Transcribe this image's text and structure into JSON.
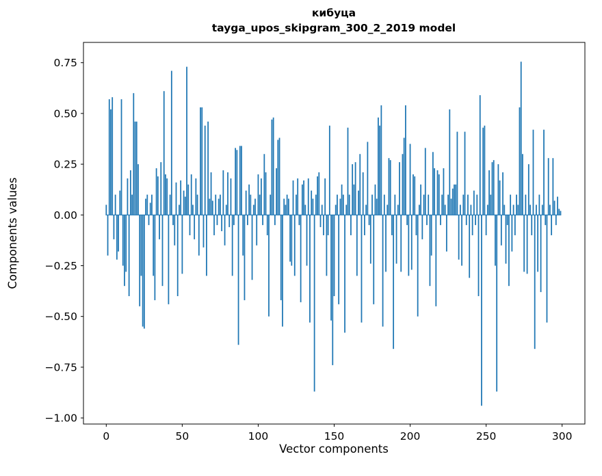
{
  "chart_data": {
    "type": "bar",
    "title": "кибуца",
    "subtitle": "tayga_upos_skipgram_300_2_2019 model",
    "xlabel": "Vector components",
    "ylabel": "Components values",
    "xlim": [
      -15,
      315
    ],
    "ylim": [
      -1.03,
      0.85
    ],
    "xticks": [
      0,
      50,
      100,
      150,
      200,
      250,
      300
    ],
    "yticks": [
      -1.0,
      -0.75,
      -0.5,
      -0.25,
      0.0,
      0.25,
      0.5,
      0.75
    ],
    "bar_color": "#1f77b4",
    "n_components": 300,
    "values": [
      0.05,
      -0.2,
      0.57,
      0.52,
      0.58,
      -0.12,
      0.1,
      -0.22,
      -0.18,
      0.12,
      0.57,
      -0.25,
      -0.35,
      -0.28,
      0.18,
      -0.4,
      0.22,
      0.1,
      0.6,
      0.46,
      0.46,
      0.25,
      -0.45,
      -0.3,
      -0.55,
      -0.56,
      0.08,
      0.1,
      -0.05,
      0.06,
      0.1,
      -0.3,
      -0.42,
      0.23,
      0.19,
      -0.12,
      0.26,
      -0.35,
      0.61,
      0.2,
      0.18,
      -0.44,
      0.1,
      0.71,
      -0.05,
      -0.15,
      0.16,
      -0.4,
      0.05,
      0.17,
      -0.29,
      0.12,
      0.09,
      0.73,
      0.15,
      -0.1,
      0.2,
      0.05,
      -0.12,
      0.18,
      0.1,
      -0.2,
      0.53,
      0.53,
      -0.16,
      0.44,
      -0.3,
      0.46,
      0.08,
      0.21,
      0.07,
      -0.1,
      0.1,
      -0.05,
      0.08,
      0.1,
      -0.08,
      0.22,
      -0.15,
      0.05,
      0.21,
      -0.06,
      0.18,
      -0.3,
      -0.05,
      0.33,
      0.32,
      -0.64,
      0.34,
      0.34,
      -0.2,
      -0.42,
      0.12,
      -0.05,
      0.15,
      0.1,
      -0.32,
      0.05,
      0.08,
      -0.15,
      0.2,
      0.1,
      0.18,
      -0.05,
      0.3,
      0.21,
      -0.1,
      -0.5,
      0.1,
      0.47,
      0.48,
      -0.05,
      0.23,
      0.37,
      0.38,
      -0.42,
      -0.55,
      0.08,
      0.05,
      0.1,
      0.08,
      -0.23,
      -0.25,
      0.17,
      -0.3,
      0.1,
      0.18,
      -0.05,
      -0.43,
      0.15,
      0.17,
      0.05,
      -0.25,
      0.18,
      -0.53,
      0.12,
      0.08,
      -0.87,
      0.1,
      0.19,
      0.21,
      -0.06,
      0.05,
      -0.1,
      0.18,
      -0.3,
      -0.1,
      0.44,
      -0.52,
      -0.74,
      -0.4,
      0.05,
      0.1,
      -0.44,
      0.08,
      0.15,
      0.1,
      -0.58,
      0.05,
      0.43,
      0.1,
      -0.1,
      0.25,
      0.15,
      0.26,
      -0.3,
      0.12,
      0.3,
      -0.53,
      0.21,
      -0.1,
      0.05,
      0.36,
      -0.05,
      -0.24,
      0.1,
      -0.44,
      0.15,
      0.08,
      0.48,
      0.44,
      0.54,
      -0.55,
      0.1,
      -0.28,
      0.05,
      0.28,
      0.27,
      -0.1,
      -0.66,
      0.1,
      -0.24,
      0.05,
      0.26,
      -0.28,
      0.3,
      0.38,
      0.54,
      -0.05,
      -0.3,
      0.35,
      -0.27,
      0.2,
      0.19,
      -0.1,
      -0.5,
      0.05,
      0.15,
      -0.12,
      0.1,
      0.33,
      -0.05,
      0.1,
      -0.35,
      -0.2,
      0.31,
      0.23,
      -0.45,
      0.22,
      0.2,
      -0.05,
      0.1,
      0.23,
      0.05,
      -0.18,
      0.1,
      0.52,
      0.08,
      0.13,
      0.15,
      0.15,
      0.41,
      -0.22,
      0.05,
      -0.25,
      0.1,
      0.41,
      -0.05,
      0.1,
      -0.31,
      0.05,
      -0.1,
      0.12,
      -0.05,
      0.1,
      -0.4,
      0.59,
      -0.94,
      0.43,
      0.44,
      -0.1,
      0.05,
      0.22,
      0.1,
      0.26,
      0.27,
      -0.25,
      -0.87,
      0.25,
      0.17,
      -0.15,
      0.21,
      0.05,
      -0.24,
      -0.05,
      -0.35,
      0.1,
      -0.18,
      0.05,
      -0.1,
      0.1,
      0.05,
      0.53,
      0.755,
      0.3,
      -0.28,
      0.1,
      -0.29,
      0.25,
      0.05,
      -0.1,
      0.42,
      -0.66,
      0.05,
      -0.28,
      0.1,
      -0.38,
      0.05,
      0.42,
      -0.05,
      -0.53,
      0.28,
      0.05,
      -0.1,
      0.28,
      0.07,
      -0.05,
      0.09,
      0.03,
      0.02
    ]
  }
}
